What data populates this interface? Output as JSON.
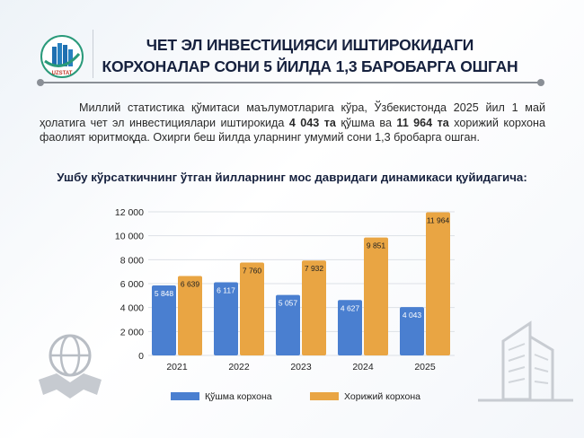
{
  "header": {
    "logo_text": "UZSTAT",
    "title_line1": "ЧЕТ ЭЛ ИНВЕСТИЦИЯСИ ИШТИРОКИДАГИ",
    "title_line2": "КОРХОНАЛАР СОНИ 5 ЙИЛДА 1,3 БАРОБАРГА ОШГАН"
  },
  "body": {
    "p_part1": "Миллий статистика қўмитаси маълумотларига кўра, Ўзбекистонда 2025 йил 1 май ҳолатига чет эл инвестициялари иштирокида ",
    "p_bold1": "4  043 та",
    "p_part2": " қўшма ва ",
    "p_bold2": "11 964 та",
    "p_part3": " хорижий корхона фаолият юритмоқда. Охирги беш йилда уларнинг умумий сони 1,3 бробарга ошган.",
    "subtitle": "Ушбу кўрсаткичнинг ўтган йилларнинг мос давридаги динамикаси қуйидагича:"
  },
  "chart_data": {
    "type": "bar",
    "categories": [
      "2021",
      "2022",
      "2023",
      "2024",
      "2025"
    ],
    "series": [
      {
        "name": "Қўшма корхона",
        "color": "#4a7fd0",
        "values": [
          5848,
          6117,
          5057,
          4627,
          4043
        ],
        "labels": [
          "5 848",
          "6 117",
          "5 057",
          "4 627",
          "4 043"
        ]
      },
      {
        "name": "Хорижий корхона",
        "color": "#e9a543",
        "values": [
          6639,
          7760,
          7932,
          9851,
          11964
        ],
        "labels": [
          "6 639",
          "7 760",
          "7 932",
          "9 851",
          "11 964"
        ]
      }
    ],
    "ylim": [
      0,
      12000
    ],
    "yticks": [
      0,
      2000,
      4000,
      6000,
      8000,
      10000,
      12000
    ],
    "ytick_labels": [
      "0",
      "2 000",
      "4 000",
      "6 000",
      "8 000",
      "10 000",
      "12 000"
    ],
    "grid": true,
    "legend": "bottom"
  }
}
